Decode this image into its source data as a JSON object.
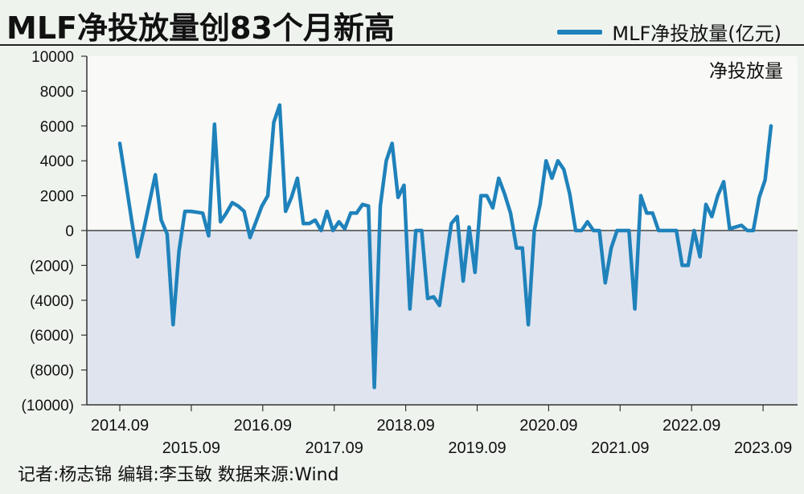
{
  "header": {
    "title": "MLF净投放量创83个月新高"
  },
  "legend": {
    "label": "MLF净投放量(亿元)",
    "color": "#1f82bb"
  },
  "footer": {
    "text": "记者:杨志锦  编辑:李玉敏  数据来源:Wind"
  },
  "chart_data": {
    "type": "line",
    "title": "MLF净投放量创83个月新高",
    "subtitle": "净投放量",
    "ylim": [
      -10000,
      10000
    ],
    "y_ticks": [
      10000,
      8000,
      6000,
      4000,
      2000,
      0,
      -2000,
      -4000,
      -6000,
      -8000,
      -10000
    ],
    "y_tick_labels": [
      "10000",
      "8000",
      "6000",
      "4000",
      "2000",
      "0",
      "(2000)",
      "(4000)",
      "(6000)",
      "(8000)",
      "(10000)"
    ],
    "x_tick_labels_upper": [
      "2014.09",
      "2016.09",
      "2018.09",
      "2020.09",
      "2022.09"
    ],
    "x_tick_labels_lower": [
      "2015.09",
      "2017.09",
      "2019.09",
      "2021.09",
      "2023.09"
    ],
    "grid": false,
    "legend_position": "top-right",
    "series": [
      {
        "name": "MLF净投放量(亿元)",
        "color": "#1f82bb",
        "values": [
          5000,
          2800,
          600,
          -1500,
          0,
          1600,
          3200,
          600,
          -200,
          -5400,
          -1200,
          1100,
          1100,
          1050,
          1000,
          -300,
          6100,
          500,
          1000,
          1600,
          1400,
          1100,
          -400,
          500,
          1400,
          2000,
          6200,
          7200,
          1100,
          1900,
          3000,
          400,
          400,
          600,
          0,
          1100,
          0,
          500,
          100,
          1000,
          1000,
          1500,
          1400,
          -9000,
          1400,
          4000,
          5000,
          1900,
          2600,
          -4500,
          0,
          0,
          -3900,
          -3800,
          -4300,
          -1900,
          400,
          800,
          -2900,
          200,
          -2400,
          2000,
          2000,
          1300,
          3000,
          2100,
          1000,
          -1000,
          -1000,
          -5400,
          0,
          1500,
          4000,
          3000,
          4000,
          3500,
          2100,
          0,
          0,
          500,
          0,
          0,
          -3000,
          -1000,
          0,
          0,
          0,
          -4500,
          2000,
          1000,
          1000,
          0,
          0,
          0,
          0,
          -2000,
          -2000,
          0,
          -1500,
          1500,
          800,
          2000,
          2800,
          100,
          200,
          300,
          0,
          0,
          1900,
          2900,
          6000
        ]
      }
    ]
  }
}
